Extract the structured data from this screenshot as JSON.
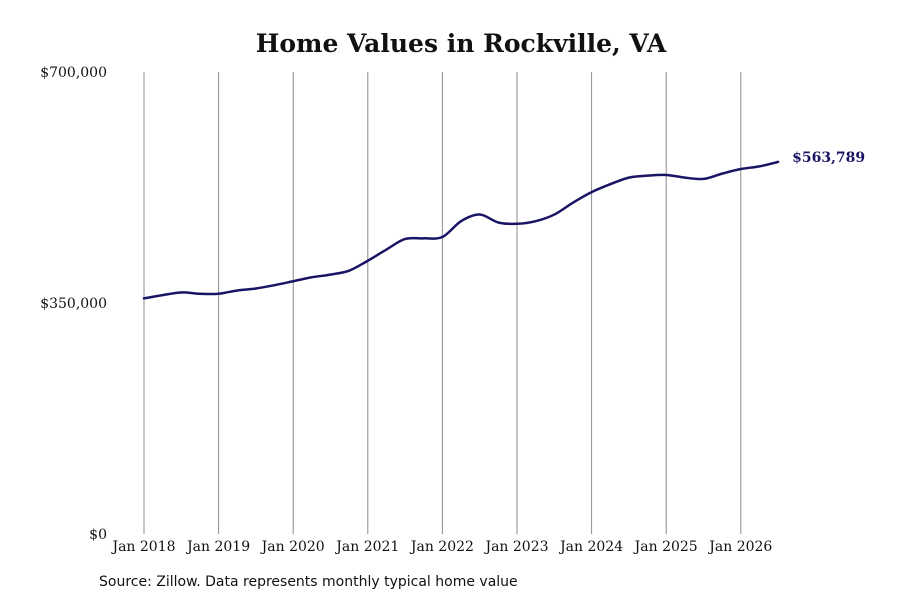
{
  "chart_data": {
    "type": "line",
    "title": "Home Values in Rockville, VA",
    "xlabel": "",
    "ylabel": "",
    "x_tick_labels": [
      "Jan 2018",
      "Jan 2019",
      "Jan 2020",
      "Jan 2021",
      "Jan 2022",
      "Jan 2023",
      "Jan 2024",
      "Jan 2025",
      "Jan 2026"
    ],
    "y_tick_labels": [
      "$700,000",
      "$350,000",
      "$0"
    ],
    "y_ticks": [
      700000,
      350000,
      0
    ],
    "ylim": [
      0,
      700000
    ],
    "xlim": [
      "2018-01",
      "2026-07"
    ],
    "grid": "vertical",
    "line_color": "#1a1464",
    "end_label": "$563,789",
    "series": [
      {
        "x": [
          "2018-01",
          "2018-04",
          "2018-07",
          "2018-10",
          "2019-01",
          "2019-04",
          "2019-07",
          "2019-10",
          "2020-01",
          "2020-04",
          "2020-07",
          "2020-10",
          "2021-01",
          "2021-04",
          "2021-07",
          "2021-10",
          "2022-01",
          "2022-04",
          "2022-07",
          "2022-10",
          "2023-01",
          "2023-04",
          "2023-07",
          "2023-10",
          "2024-01",
          "2024-04",
          "2024-07",
          "2024-10",
          "2025-01",
          "2025-04",
          "2025-07",
          "2025-10",
          "2026-01",
          "2026-04",
          "2026-07"
        ],
        "values": [
          357000,
          362000,
          366000,
          364000,
          364000,
          369000,
          372000,
          377000,
          383000,
          389000,
          393000,
          399000,
          414000,
          431000,
          447000,
          448000,
          450000,
          474000,
          484000,
          472000,
          470000,
          474000,
          484000,
          502000,
          518000,
          530000,
          540000,
          543000,
          544000,
          540000,
          538000,
          546000,
          553000,
          557000,
          563789
        ]
      }
    ]
  },
  "caption": {
    "source": "Source: Zillow. Data represents monthly typical home value"
  }
}
